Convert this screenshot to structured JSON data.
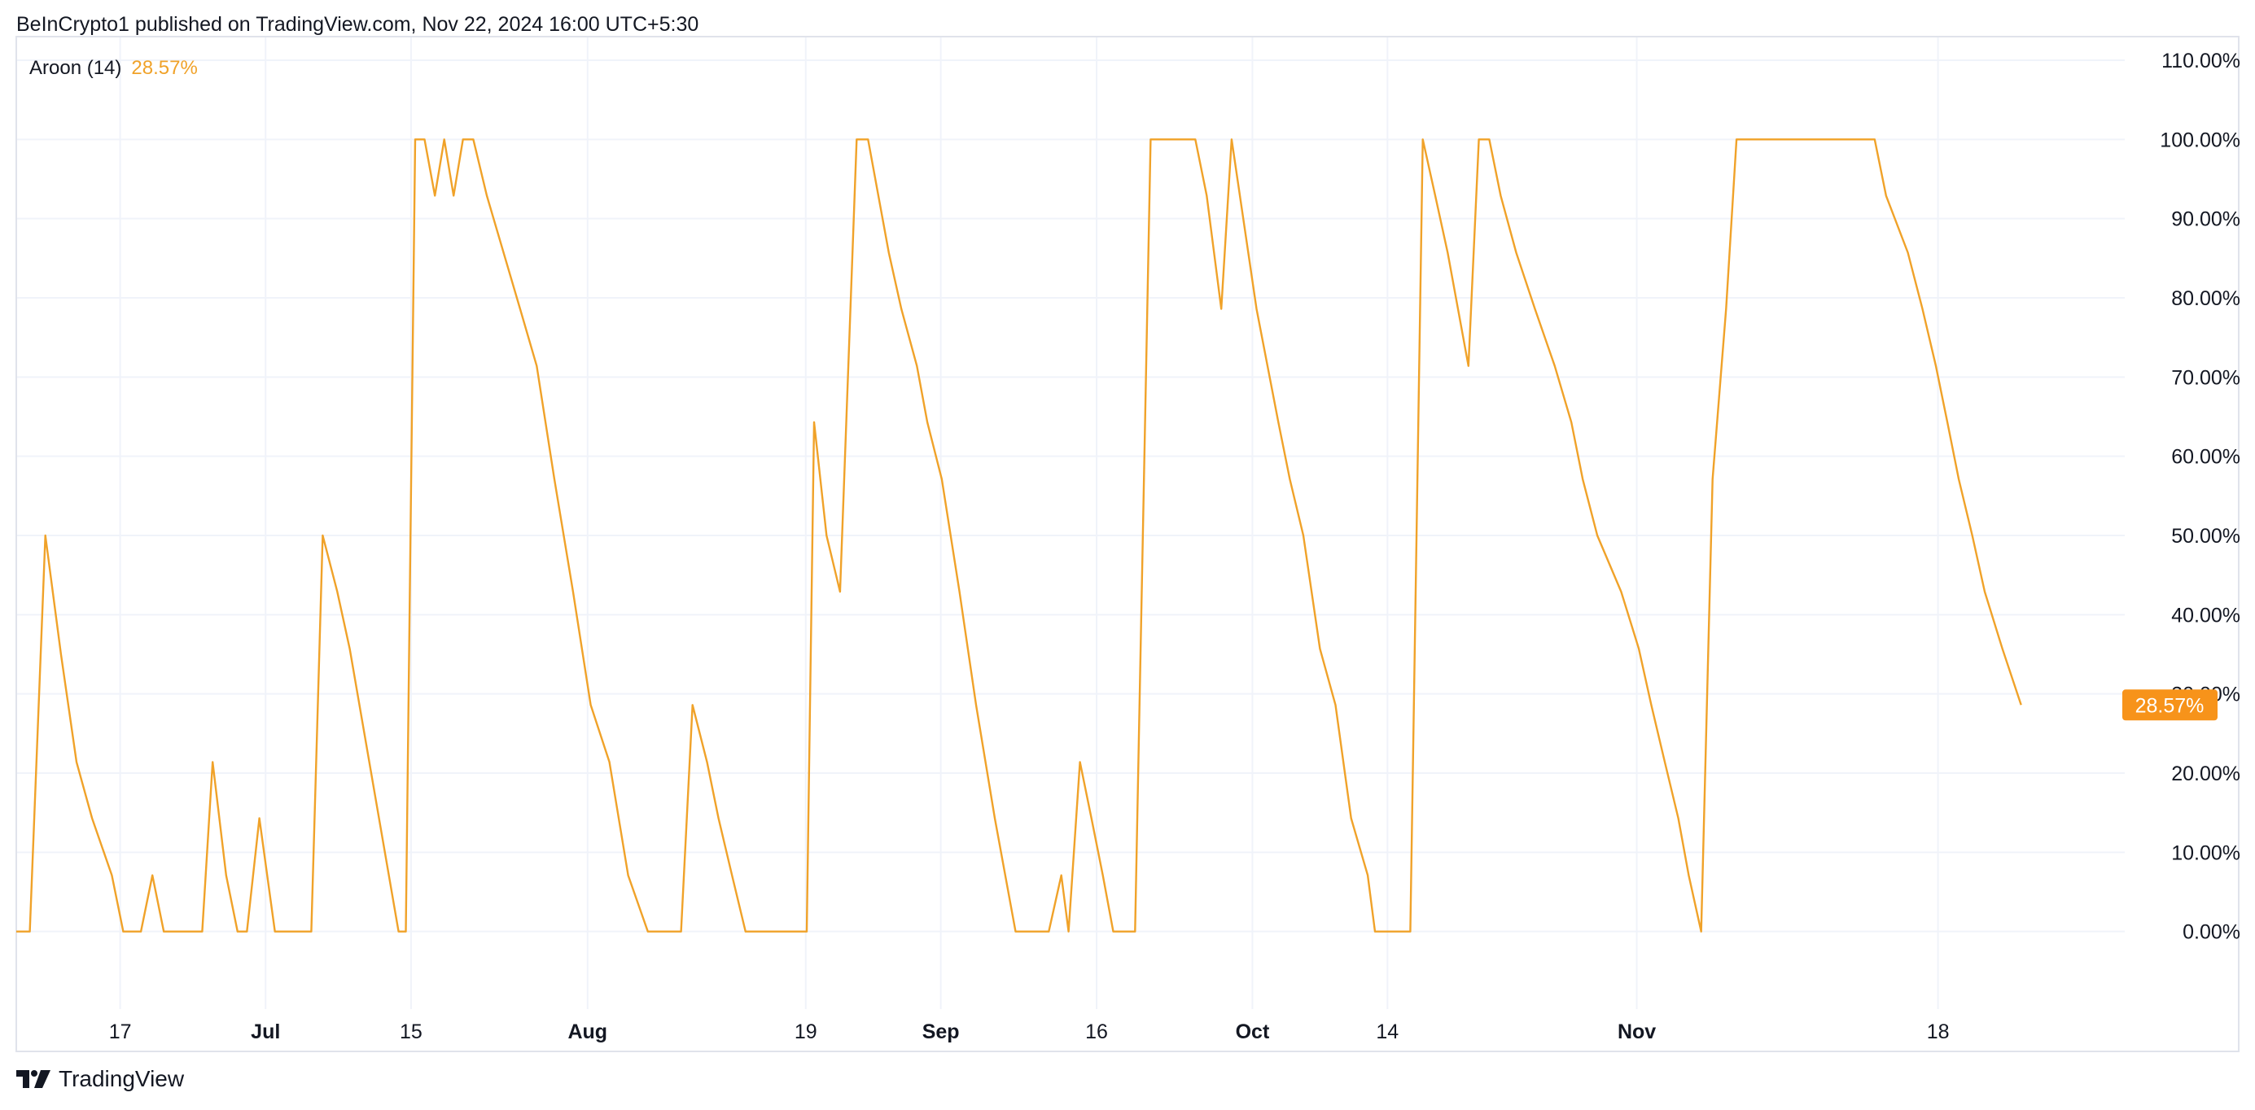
{
  "header": {
    "attribution": "BeInCrypto1 published on TradingView.com, Nov 22, 2024 16:00 UTC+5:30"
  },
  "legend": {
    "name": "Aroon (14)",
    "value": "28.57%"
  },
  "footer": {
    "brand": "TradingView",
    "logo_icon": "tradingview-logo-icon"
  },
  "colors": {
    "line": "#F0A229",
    "last_label_bg": "#F7931A",
    "grid": "#F0F3FA",
    "border": "#E0E3EB"
  },
  "chart_data": {
    "type": "line",
    "title": "",
    "xlabel": "",
    "ylabel": "",
    "ylim": [
      -10,
      110
    ],
    "y_ticks": [
      0,
      10,
      20,
      30,
      40,
      50,
      60,
      70,
      80,
      90,
      100,
      110
    ],
    "y_tick_labels": [
      "0.00%",
      "10.00%",
      "20.00%",
      "30.00%",
      "40.00%",
      "50.00%",
      "60.00%",
      "70.00%",
      "80.00%",
      "90.00%",
      "100.00%",
      "110.00%"
    ],
    "x_ticks": [
      {
        "label": "17",
        "x": 10,
        "bold": false
      },
      {
        "label": "Jul",
        "x": 24,
        "bold": true
      },
      {
        "label": "15",
        "x": 38,
        "bold": false
      },
      {
        "label": "Aug",
        "x": 55,
        "bold": true
      },
      {
        "label": "19",
        "x": 76,
        "bold": false
      },
      {
        "label": "Sep",
        "x": 89,
        "bold": true
      },
      {
        "label": "16",
        "x": 104,
        "bold": false
      },
      {
        "label": "Oct",
        "x": 119,
        "bold": true
      },
      {
        "label": "14",
        "x": 132,
        "bold": false
      },
      {
        "label": "Nov",
        "x": 156,
        "bold": true
      },
      {
        "label": "18",
        "x": 185,
        "bold": false
      }
    ],
    "grid": true,
    "last_value_label": "28.57%",
    "series": [
      {
        "values": [
          [
            0,
            0
          ],
          [
            1.3,
            0
          ],
          [
            2.8,
            50
          ],
          [
            4.3,
            35
          ],
          [
            5.8,
            21.4
          ],
          [
            7.3,
            14.3
          ],
          [
            9.2,
            7.1
          ],
          [
            10.3,
            0
          ],
          [
            12,
            0
          ],
          [
            13.1,
            7.1
          ],
          [
            14.2,
            0
          ],
          [
            17.9,
            0
          ],
          [
            18.9,
            21.4
          ],
          [
            20.2,
            7.1
          ],
          [
            21.3,
            0
          ],
          [
            22.2,
            0
          ],
          [
            23.4,
            14.3
          ],
          [
            24.9,
            0
          ],
          [
            28.4,
            0
          ],
          [
            29.5,
            50
          ],
          [
            30.9,
            42.9
          ],
          [
            32.1,
            35.7
          ],
          [
            36.8,
            0
          ],
          [
            37.5,
            0
          ],
          [
            38.4,
            100
          ],
          [
            39.3,
            100
          ],
          [
            40.3,
            92.9
          ],
          [
            41.2,
            100
          ],
          [
            42.1,
            92.9
          ],
          [
            43,
            100
          ],
          [
            44,
            100
          ],
          [
            45.3,
            92.9
          ],
          [
            48.5,
            78.6
          ],
          [
            50.1,
            71.4
          ],
          [
            51.8,
            57.1
          ],
          [
            53.6,
            42.9
          ],
          [
            55.3,
            28.6
          ],
          [
            57.1,
            21.4
          ],
          [
            58.9,
            7.1
          ],
          [
            60.8,
            0
          ],
          [
            64,
            0
          ],
          [
            65.1,
            28.6
          ],
          [
            66.5,
            21.4
          ],
          [
            67.6,
            14.3
          ],
          [
            68.9,
            7.1
          ],
          [
            70.2,
            0
          ],
          [
            76.1,
            0
          ],
          [
            76.8,
            64.3
          ],
          [
            78,
            50
          ],
          [
            79.3,
            42.9
          ],
          [
            80.9,
            100
          ],
          [
            82,
            100
          ],
          [
            84,
            85.7
          ],
          [
            85.2,
            78.6
          ],
          [
            86.7,
            71.4
          ],
          [
            87.7,
            64.3
          ],
          [
            89.1,
            57.1
          ],
          [
            90.8,
            42.9
          ],
          [
            92.4,
            28.6
          ],
          [
            94.2,
            14.3
          ],
          [
            96.2,
            0
          ],
          [
            99.4,
            0
          ],
          [
            100.6,
            7.1
          ],
          [
            101.3,
            0
          ],
          [
            102.4,
            21.4
          ],
          [
            103.5,
            14.3
          ],
          [
            104.6,
            7.1
          ],
          [
            105.6,
            0
          ],
          [
            107.7,
            0
          ],
          [
            109.2,
            100
          ],
          [
            113.5,
            100
          ],
          [
            114.6,
            92.9
          ],
          [
            116,
            78.6
          ],
          [
            117,
            100
          ],
          [
            119.4,
            78.6
          ],
          [
            121.5,
            64.3
          ],
          [
            122.6,
            57.1
          ],
          [
            123.9,
            50
          ],
          [
            125.5,
            35.7
          ],
          [
            127,
            28.6
          ],
          [
            128.5,
            14.3
          ],
          [
            130.1,
            7.1
          ],
          [
            130.8,
            0
          ],
          [
            134.2,
            0
          ],
          [
            135.4,
            100
          ],
          [
            136.6,
            92.9
          ],
          [
            137.8,
            85.7
          ],
          [
            139.8,
            71.4
          ],
          [
            140.8,
            100
          ],
          [
            141.8,
            100
          ],
          [
            142.9,
            92.9
          ],
          [
            144.4,
            85.7
          ],
          [
            146.2,
            78.6
          ],
          [
            148.1,
            71.4
          ],
          [
            149.7,
            64.3
          ],
          [
            150.8,
            57.1
          ],
          [
            152.2,
            50
          ],
          [
            154.5,
            42.9
          ],
          [
            156.2,
            35.7
          ],
          [
            157.4,
            28.6
          ],
          [
            158.7,
            21.4
          ],
          [
            160,
            14.3
          ],
          [
            161,
            7.1
          ],
          [
            162.2,
            0
          ],
          [
            163.3,
            57.1
          ],
          [
            164.6,
            78.6
          ],
          [
            165.6,
            100
          ],
          [
            178.9,
            100
          ],
          [
            180,
            92.9
          ],
          [
            182.1,
            85.7
          ],
          [
            183.5,
            78.6
          ],
          [
            184.8,
            71.4
          ],
          [
            185.9,
            64.3
          ],
          [
            187,
            57.1
          ],
          [
            188.3,
            50
          ],
          [
            189.5,
            42.9
          ],
          [
            191.2,
            35.7
          ],
          [
            193,
            28.6
          ]
        ]
      }
    ]
  }
}
